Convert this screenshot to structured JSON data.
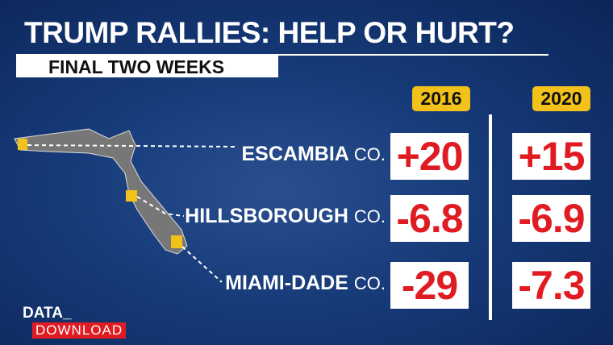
{
  "header": {
    "title": "TRUMP RALLIES: HELP OR HURT?",
    "subtitle": "FINAL TWO WEEKS"
  },
  "table": {
    "columns": [
      "2016",
      "2020"
    ],
    "rows": [
      {
        "county": "ESCAMBIA",
        "suffix": "CO.",
        "values": [
          "+20",
          "+15"
        ]
      },
      {
        "county": "HILLSBOROUGH",
        "suffix": "CO.",
        "values": [
          "-6.8",
          "-6.9"
        ]
      },
      {
        "county": "MIAMI-DADE",
        "suffix": "CO.",
        "values": [
          "-29",
          "-7.3"
        ]
      }
    ]
  },
  "logo": {
    "top": "DATA_",
    "bottom": "DOWNLOAD"
  }
}
